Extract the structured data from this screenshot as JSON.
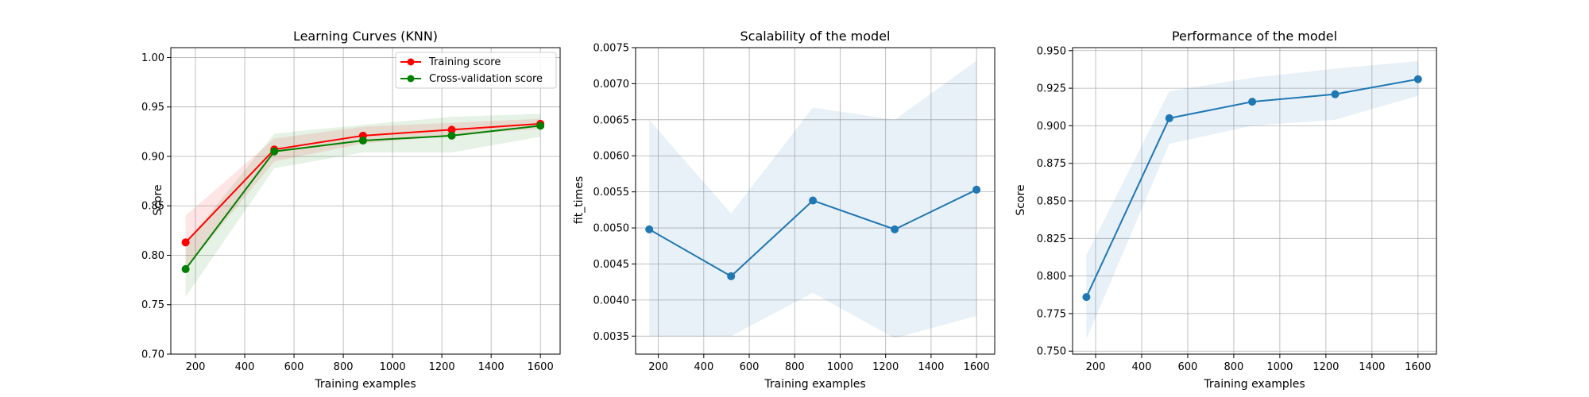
{
  "chart_data": [
    {
      "type": "line",
      "title": "Learning Curves (KNN)",
      "xlabel": "Training examples",
      "ylabel": "Score",
      "xlim": [
        100,
        1680
      ],
      "ylim": [
        0.7,
        1.01
      ],
      "xticks": [
        200,
        400,
        600,
        800,
        1000,
        1200,
        1400,
        1600
      ],
      "yticks": [
        0.7,
        0.75,
        0.8,
        0.85,
        0.9,
        0.95,
        1.0
      ],
      "tick_decimals": 2,
      "grid": true,
      "legend": "top-right",
      "x": [
        160,
        520,
        880,
        1240,
        1600
      ],
      "series": [
        {
          "name": "Training score",
          "color": "#ff0000",
          "values": [
            0.813,
            0.907,
            0.921,
            0.927,
            0.933
          ],
          "band_low": [
            0.786,
            0.895,
            0.913,
            0.921,
            0.928
          ],
          "band_high": [
            0.84,
            0.918,
            0.93,
            0.934,
            0.938
          ]
        },
        {
          "name": "Cross-validation score",
          "color": "#008000",
          "values": [
            0.786,
            0.905,
            0.916,
            0.921,
            0.931
          ],
          "band_low": [
            0.758,
            0.888,
            0.904,
            0.904,
            0.92
          ],
          "band_high": [
            0.812,
            0.923,
            0.932,
            0.94,
            0.943
          ]
        }
      ]
    },
    {
      "type": "line",
      "title": "Scalability of the model",
      "xlabel": "Training examples",
      "ylabel": "fit_times",
      "xlim": [
        100,
        1680
      ],
      "ylim": [
        0.00325,
        0.0075
      ],
      "xticks": [
        200,
        400,
        600,
        800,
        1000,
        1200,
        1400,
        1600
      ],
      "yticks": [
        0.0035,
        0.004,
        0.0045,
        0.005,
        0.0055,
        0.006,
        0.0065,
        0.007,
        0.0075
      ],
      "tick_decimals": 4,
      "grid": true,
      "x": [
        160,
        520,
        880,
        1240,
        1600
      ],
      "series": [
        {
          "color": "#1f77b4",
          "values": [
            0.00498,
            0.00433,
            0.00538,
            0.00498,
            0.00553
          ],
          "band_low": [
            0.0035,
            0.0035,
            0.0041,
            0.00347,
            0.00378
          ],
          "band_high": [
            0.0065,
            0.0052,
            0.00667,
            0.0065,
            0.00732
          ]
        }
      ]
    },
    {
      "type": "line",
      "title": "Performance of the model",
      "xlabel": "Training examples",
      "ylabel": "Score",
      "xlim": [
        100,
        1680
      ],
      "ylim": [
        0.748,
        0.952
      ],
      "xticks": [
        200,
        400,
        600,
        800,
        1000,
        1200,
        1400,
        1600
      ],
      "yticks": [
        0.75,
        0.775,
        0.8,
        0.825,
        0.85,
        0.875,
        0.9,
        0.925,
        0.95
      ],
      "tick_decimals": 3,
      "grid": true,
      "x": [
        160,
        520,
        880,
        1240,
        1600
      ],
      "series": [
        {
          "color": "#1f77b4",
          "values": [
            0.786,
            0.905,
            0.916,
            0.921,
            0.931
          ],
          "band_low": [
            0.758,
            0.888,
            0.9,
            0.904,
            0.92
          ],
          "band_high": [
            0.814,
            0.923,
            0.932,
            0.938,
            0.943
          ]
        }
      ]
    }
  ]
}
